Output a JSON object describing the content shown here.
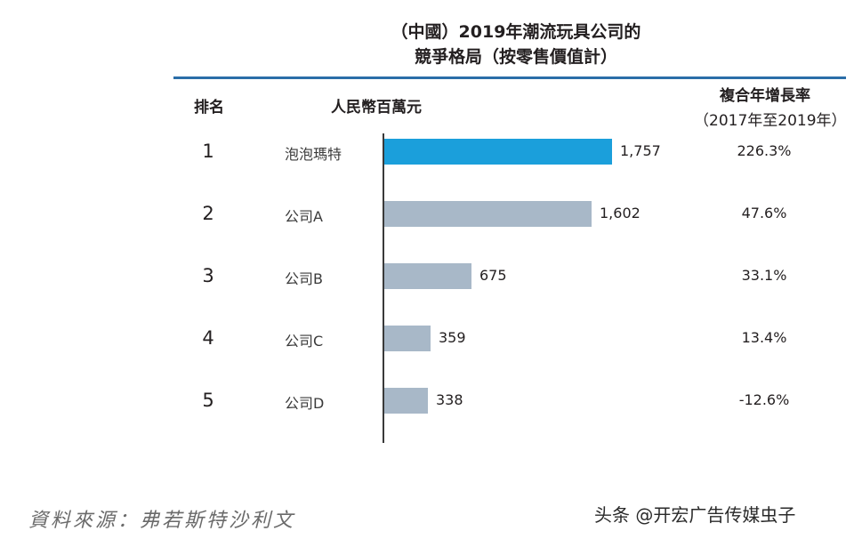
{
  "chart_data": {
    "type": "bar",
    "orientation": "horizontal",
    "title_line1": "（中國）2019年潮流玩具公司的",
    "title_line2": "競爭格局（按零售價值計）",
    "headers": {
      "rank": "排名",
      "unit": "人民幣百萬元",
      "cagr_line1": "複合年增長率",
      "cagr_line2": "（2017年至2019年）"
    },
    "categories": [
      "泡泡瑪特",
      "公司A",
      "公司B",
      "公司C",
      "公司D"
    ],
    "ranks": [
      "1",
      "2",
      "3",
      "4",
      "5"
    ],
    "values": [
      1757,
      1602,
      675,
      359,
      338
    ],
    "value_labels": [
      "1,757",
      "1,602",
      "675",
      "359",
      "338"
    ],
    "cagr": [
      "226.3%",
      "47.6%",
      "33.1%",
      "13.4%",
      "-12.6%"
    ],
    "xlim": [
      0,
      1757
    ],
    "colors": {
      "highlight": "#1b9fdb",
      "default": "#a8b8c8"
    },
    "grid": false,
    "legend": "none"
  },
  "source": "資料來源：弗若斯特沙利文",
  "watermark": "头条 @开宏广告传媒虫子"
}
